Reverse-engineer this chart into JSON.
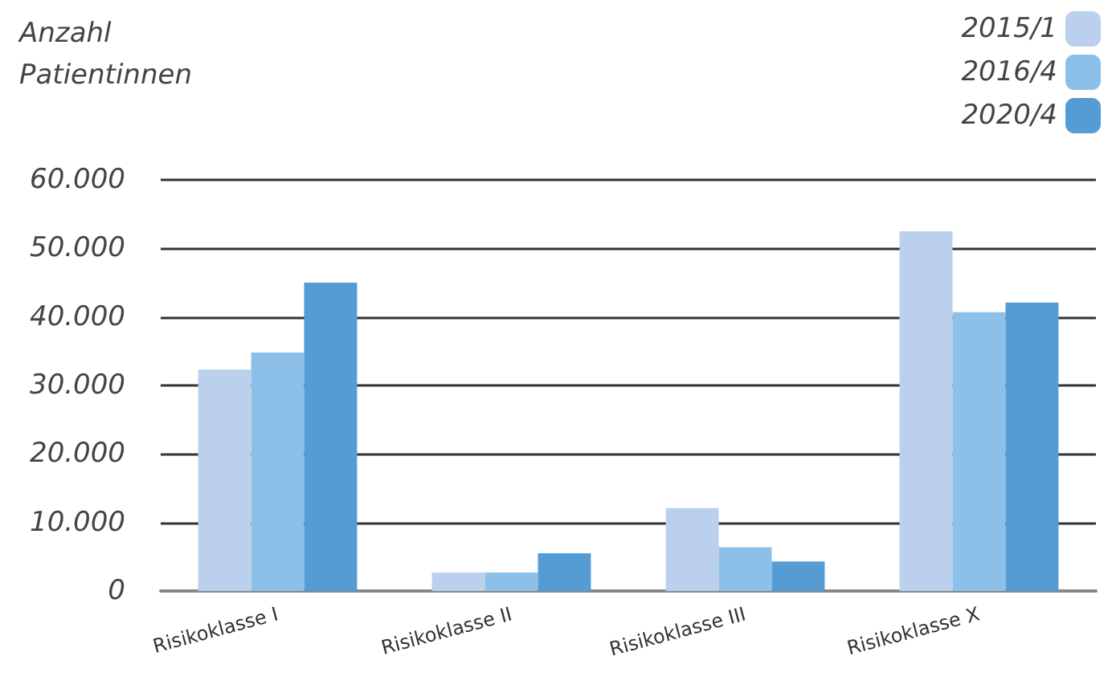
{
  "chart_data": {
    "type": "bar",
    "ylabel": "Anzahl\nPatientinnen",
    "categories": [
      "Risikoklasse I",
      "Risikoklasse II",
      "Risikoklasse III",
      "Risikoklasse X"
    ],
    "series": [
      {
        "name": "2015/1",
        "color": "#bbd0ed",
        "values": [
          32300,
          2700,
          12100,
          52500
        ]
      },
      {
        "name": "2016/4",
        "color": "#8dc0e8",
        "values": [
          34800,
          2700,
          6400,
          40700
        ]
      },
      {
        "name": "2020/4",
        "color": "#559cd5",
        "values": [
          45000,
          5500,
          4300,
          42100
        ]
      }
    ],
    "ylim": [
      0,
      60000
    ],
    "yticks": [
      {
        "value": 0,
        "label": "0"
      },
      {
        "value": 10000,
        "label": "10.000"
      },
      {
        "value": 20000,
        "label": "20.000"
      },
      {
        "value": 30000,
        "label": "30.000"
      },
      {
        "value": 40000,
        "label": "40.000"
      },
      {
        "value": 50000,
        "label": "50.000"
      },
      {
        "value": 60000,
        "label": "60.000"
      }
    ],
    "grid": "y",
    "legend": "top right"
  }
}
